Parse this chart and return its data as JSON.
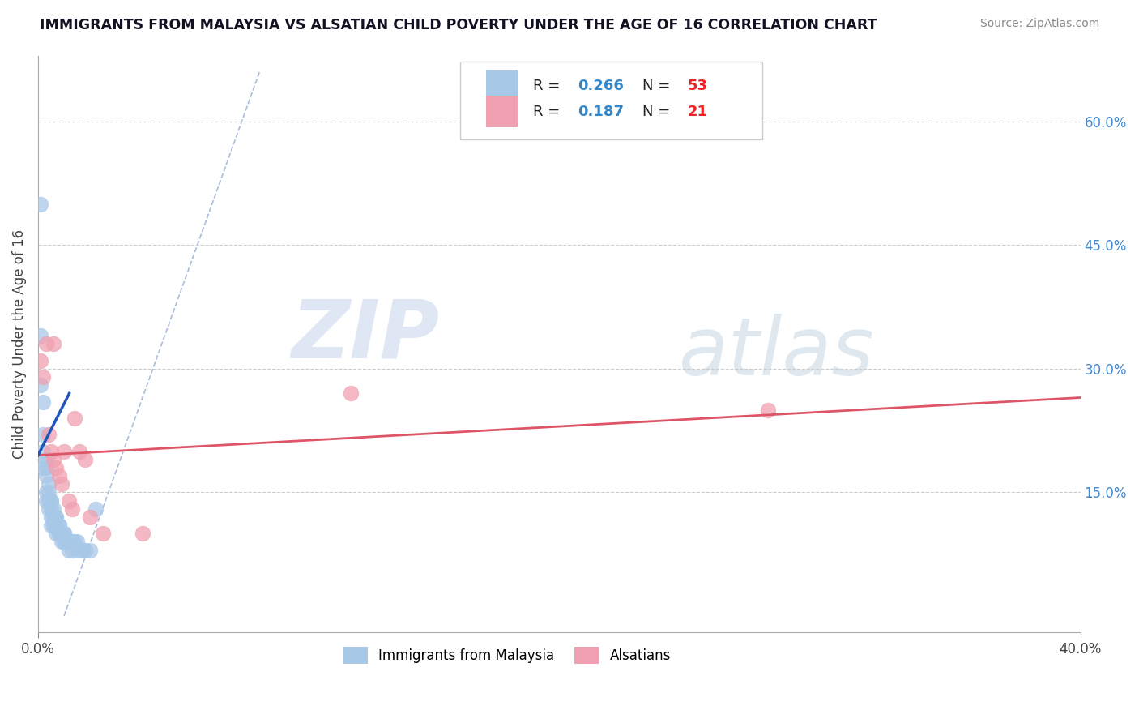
{
  "title": "IMMIGRANTS FROM MALAYSIA VS ALSATIAN CHILD POVERTY UNDER THE AGE OF 16 CORRELATION CHART",
  "source": "Source: ZipAtlas.com",
  "ylabel": "Child Poverty Under the Age of 16",
  "xlim": [
    0.0,
    0.4
  ],
  "ylim": [
    -0.02,
    0.68
  ],
  "grid_color": "#cccccc",
  "background_color": "#ffffff",
  "blue_scatter_color": "#a8c8e8",
  "pink_scatter_color": "#f0a0b0",
  "blue_line_color": "#2255bb",
  "pink_line_color": "#dd5566",
  "diag_line_color": "#aabbdd",
  "R_blue": "0.266",
  "N_blue": "53",
  "R_pink": "0.187",
  "N_pink": "21",
  "legend_label_blue": "Immigrants from Malaysia",
  "legend_label_pink": "Alsatians",
  "watermark_zip": "ZIP",
  "watermark_atlas": "atlas",
  "blue_x": [
    0.001,
    0.001,
    0.001,
    0.002,
    0.002,
    0.002,
    0.002,
    0.003,
    0.003,
    0.003,
    0.003,
    0.003,
    0.004,
    0.004,
    0.004,
    0.004,
    0.005,
    0.005,
    0.005,
    0.005,
    0.005,
    0.006,
    0.006,
    0.006,
    0.006,
    0.007,
    0.007,
    0.007,
    0.007,
    0.008,
    0.008,
    0.008,
    0.008,
    0.009,
    0.009,
    0.009,
    0.01,
    0.01,
    0.01,
    0.01,
    0.011,
    0.011,
    0.012,
    0.012,
    0.013,
    0.013,
    0.014,
    0.015,
    0.016,
    0.017,
    0.018,
    0.02,
    0.022
  ],
  "blue_y": [
    0.5,
    0.34,
    0.28,
    0.26,
    0.22,
    0.2,
    0.18,
    0.19,
    0.18,
    0.17,
    0.15,
    0.14,
    0.16,
    0.15,
    0.14,
    0.13,
    0.14,
    0.14,
    0.13,
    0.12,
    0.11,
    0.13,
    0.12,
    0.12,
    0.11,
    0.12,
    0.12,
    0.11,
    0.1,
    0.11,
    0.11,
    0.1,
    0.1,
    0.1,
    0.1,
    0.09,
    0.1,
    0.1,
    0.09,
    0.09,
    0.09,
    0.09,
    0.09,
    0.08,
    0.09,
    0.08,
    0.09,
    0.09,
    0.08,
    0.08,
    0.08,
    0.08,
    0.13
  ],
  "pink_x": [
    0.001,
    0.002,
    0.003,
    0.004,
    0.005,
    0.006,
    0.006,
    0.007,
    0.008,
    0.009,
    0.01,
    0.012,
    0.013,
    0.014,
    0.016,
    0.018,
    0.02,
    0.025,
    0.04,
    0.12,
    0.28
  ],
  "pink_y": [
    0.31,
    0.29,
    0.33,
    0.22,
    0.2,
    0.33,
    0.19,
    0.18,
    0.17,
    0.16,
    0.2,
    0.14,
    0.13,
    0.24,
    0.2,
    0.19,
    0.12,
    0.1,
    0.1,
    0.27,
    0.25
  ],
  "blue_line_x": [
    0.0,
    0.012
  ],
  "blue_line_y_start": 0.195,
  "blue_line_y_end": 0.27,
  "pink_line_x": [
    0.0,
    0.4
  ],
  "pink_line_y_start": 0.195,
  "pink_line_y_end": 0.265
}
